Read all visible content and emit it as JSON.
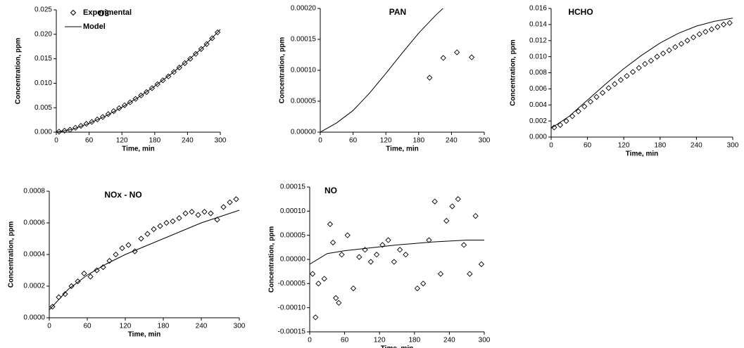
{
  "chart_data": [
    {
      "type": "scatter",
      "title": "O3",
      "xlabel": "Time, min",
      "ylabel": "Concentration, ppm",
      "xlim": [
        0,
        300
      ],
      "xticks": [
        0,
        60,
        120,
        180,
        240,
        300
      ],
      "ylim": [
        0,
        0.025
      ],
      "yticks": [
        {
          "value": 0,
          "label": "0.000"
        },
        0.005,
        {
          "value": 0.01,
          "label": "0.010"
        },
        0.015,
        {
          "value": 0.02,
          "label": "0.020"
        },
        0.025
      ],
      "legend": "top-left",
      "series": [
        {
          "name": "Experimental",
          "type": "scatter",
          "color": "#000000",
          "x": [
            5,
            15,
            25,
            35,
            45,
            55,
            65,
            75,
            85,
            95,
            105,
            115,
            125,
            135,
            145,
            155,
            165,
            175,
            185,
            195,
            205,
            215,
            225,
            235,
            245,
            255,
            265,
            275,
            285,
            295
          ],
          "values": [
            0.0001,
            0.0003,
            0.0005,
            0.0009,
            0.0013,
            0.0017,
            0.0021,
            0.0026,
            0.0031,
            0.0037,
            0.0043,
            0.0049,
            0.0055,
            0.0061,
            0.0068,
            0.0075,
            0.0082,
            0.009,
            0.0098,
            0.0106,
            0.0114,
            0.0123,
            0.0132,
            0.0141,
            0.015,
            0.016,
            0.017,
            0.018,
            0.0192,
            0.0204
          ]
        },
        {
          "name": "Model",
          "type": "line",
          "color": "#000000",
          "x": [
            0,
            30,
            60,
            90,
            120,
            150,
            180,
            210,
            240,
            270,
            300
          ],
          "values": [
            0,
            0.0006,
            0.0018,
            0.0033,
            0.0051,
            0.0071,
            0.0094,
            0.0119,
            0.0146,
            0.0175,
            0.021
          ]
        }
      ]
    },
    {
      "type": "scatter",
      "title": "PAN",
      "xlabel": "Time, min",
      "ylabel": "Concentration, ppm",
      "xlim": [
        0,
        300
      ],
      "xticks": [
        0,
        60,
        120,
        180,
        240,
        300
      ],
      "ylim": [
        0,
        0.0002
      ],
      "yticks": [
        {
          "value": 0,
          "label": "0.00000"
        },
        5e-05,
        {
          "value": 0.0001,
          "label": "0.00010"
        },
        0.00015,
        {
          "value": 0.0002,
          "label": "0.00020"
        }
      ],
      "series": [
        {
          "type": "scatter",
          "color": "#000000",
          "x": [
            200,
            225,
            250,
            277
          ],
          "values": [
            8.8e-05,
            0.00012,
            0.000129,
            0.000121
          ]
        },
        {
          "type": "line",
          "color": "#000000",
          "x": [
            0,
            30,
            60,
            90,
            120,
            150,
            180,
            210,
            240
          ],
          "values": [
            0,
            1.5e-05,
            3.5e-05,
            6.3e-05,
            9.5e-05,
            0.000128,
            0.00016,
            0.000188,
            0.000213
          ]
        }
      ]
    },
    {
      "type": "scatter",
      "title": "HCHO",
      "xlabel": "Time, min",
      "ylabel": "Concentration, ppm",
      "xlim": [
        0,
        300
      ],
      "xticks": [
        0,
        60,
        120,
        180,
        240,
        300
      ],
      "ylim": [
        0,
        0.016
      ],
      "yticks": [
        {
          "value": 0,
          "label": "0.000"
        },
        0.002,
        0.004,
        0.006,
        0.008,
        {
          "value": 0.01,
          "label": "0.010"
        },
        0.012,
        0.014,
        0.016
      ],
      "series": [
        {
          "type": "scatter",
          "color": "#000000",
          "x": [
            5,
            15,
            25,
            35,
            45,
            55,
            65,
            75,
            85,
            95,
            105,
            115,
            125,
            135,
            145,
            155,
            165,
            175,
            185,
            195,
            205,
            215,
            225,
            235,
            245,
            255,
            265,
            275,
            285,
            295
          ],
          "values": [
            0.0012,
            0.0015,
            0.002,
            0.0026,
            0.0032,
            0.0038,
            0.0044,
            0.005,
            0.0055,
            0.0061,
            0.0066,
            0.0071,
            0.0076,
            0.0081,
            0.0086,
            0.0091,
            0.0095,
            0.01,
            0.0104,
            0.0108,
            0.0112,
            0.0116,
            0.012,
            0.0124,
            0.0128,
            0.0131,
            0.0134,
            0.0137,
            0.014,
            0.0142
          ]
        },
        {
          "type": "line",
          "color": "#000000",
          "x": [
            0,
            30,
            60,
            90,
            120,
            150,
            180,
            210,
            240,
            270,
            300
          ],
          "values": [
            0.0011,
            0.0026,
            0.0046,
            0.0066,
            0.0085,
            0.0102,
            0.0117,
            0.0129,
            0.0138,
            0.0144,
            0.0148
          ]
        }
      ]
    },
    {
      "type": "scatter",
      "title": "NOx - NO",
      "xlabel": "Time, min",
      "ylabel": "Concentration, ppm",
      "xlim": [
        0,
        300
      ],
      "xticks": [
        0,
        60,
        120,
        180,
        240,
        300
      ],
      "ylim": [
        0,
        0.0008
      ],
      "yticks": [
        {
          "value": 0,
          "label": "0.0000"
        },
        0.0002,
        0.0004,
        0.0006,
        0.0008
      ],
      "series": [
        {
          "type": "scatter",
          "color": "#000000",
          "x": [
            5,
            15,
            25,
            35,
            45,
            55,
            65,
            75,
            85,
            95,
            105,
            115,
            125,
            135,
            145,
            155,
            165,
            175,
            185,
            195,
            205,
            215,
            225,
            235,
            245,
            255,
            265,
            275,
            285,
            295
          ],
          "values": [
            7e-05,
            0.00013,
            0.00015,
            0.0002,
            0.00023,
            0.00028,
            0.00026,
            0.0003,
            0.00032,
            0.00036,
            0.0004,
            0.00044,
            0.00046,
            0.00042,
            0.0005,
            0.00053,
            0.00056,
            0.00058,
            0.0006,
            0.00061,
            0.00063,
            0.00066,
            0.00067,
            0.00065,
            0.00067,
            0.00066,
            0.00062,
            0.0007,
            0.00073,
            0.00075
          ]
        },
        {
          "type": "line",
          "color": "#000000",
          "x": [
            0,
            30,
            60,
            90,
            120,
            150,
            180,
            210,
            240,
            270,
            300
          ],
          "values": [
            5e-05,
            0.00018,
            0.00027,
            0.00034,
            0.0004,
            0.00045,
            0.0005,
            0.00055,
            0.0006,
            0.00064,
            0.00068
          ]
        }
      ]
    },
    {
      "type": "scatter",
      "title": "NO",
      "xlabel": "Time, min",
      "ylabel": "Concentration, ppm",
      "xlim": [
        0,
        300
      ],
      "xticks": [
        0,
        60,
        120,
        180,
        240,
        300
      ],
      "ylim": [
        -0.00015,
        0.00015
      ],
      "yticks": [
        -0.00015,
        {
          "value": -0.0001,
          "label": "-0.00010"
        },
        -5e-05,
        {
          "value": 0,
          "label": "0.00000"
        },
        5e-05,
        {
          "value": 0.0001,
          "label": "0.00010"
        },
        0.00015
      ],
      "series": [
        {
          "type": "scatter",
          "color": "#000000",
          "x": [
            5,
            10,
            15,
            25,
            35,
            40,
            45,
            50,
            55,
            65,
            75,
            85,
            95,
            105,
            115,
            125,
            135,
            145,
            155,
            165,
            185,
            195,
            205,
            215,
            225,
            235,
            245,
            255,
            265,
            275,
            285,
            295
          ],
          "values": [
            -3e-05,
            -0.00012,
            -5e-05,
            -4e-05,
            7.3e-05,
            3.5e-05,
            -8e-05,
            -9e-05,
            1e-05,
            5e-05,
            -6e-05,
            5e-06,
            2e-05,
            -5e-06,
            1e-05,
            3e-05,
            4e-05,
            -5e-06,
            2e-05,
            1e-05,
            -6e-05,
            -5e-05,
            4e-05,
            0.00012,
            -3e-05,
            8e-05,
            0.00011,
            0.000125,
            3e-05,
            -3e-05,
            9e-05,
            -1e-05
          ]
        },
        {
          "type": "line",
          "color": "#000000",
          "x": [
            0,
            30,
            60,
            90,
            120,
            150,
            180,
            210,
            240,
            270,
            300
          ],
          "values": [
            -1e-05,
            1.2e-05,
            1.8e-05,
            2.2e-05,
            2.6e-05,
            3e-05,
            3.3e-05,
            3.6e-05,
            3.8e-05,
            4e-05,
            4e-05
          ]
        }
      ]
    }
  ]
}
